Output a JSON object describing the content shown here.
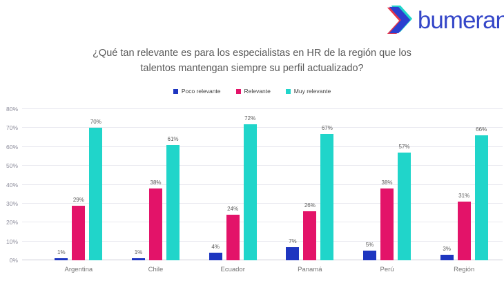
{
  "logo": {
    "text": "bumeran",
    "text_color": "#3446c8",
    "icon_colors": {
      "front": "#2b3fd0",
      "back_top": "#20d5ca",
      "back_left": "#e5344a"
    }
  },
  "title": {
    "text": "¿Qué tan relevante es para los especialistas en HR de la región que los talentos mantengan siempre su perfil actualizado?"
  },
  "chart_data": {
    "type": "bar",
    "categories": [
      "Argentina",
      "Chile",
      "Ecuador",
      "Panamá",
      "Perú",
      "Región"
    ],
    "series": [
      {
        "name": "Poco relevante",
        "color": "#1e36c0",
        "values": [
          1,
          1,
          4,
          7,
          5,
          3
        ]
      },
      {
        "name": "Relevante",
        "color": "#e31369",
        "values": [
          29,
          38,
          24,
          26,
          38,
          31
        ]
      },
      {
        "name": "Muy relevante",
        "color": "#20d5ca",
        "values": [
          70,
          61,
          72,
          67,
          57,
          66
        ]
      }
    ],
    "value_suffix": "%",
    "xlabel": "",
    "ylabel": "",
    "ylim": [
      0,
      80
    ],
    "yticks": [
      "0%",
      "10%",
      "20%",
      "30%",
      "40%",
      "50%",
      "60%",
      "70%",
      "80%"
    ],
    "grid": true,
    "legend_position": "top",
    "data_labels": true
  }
}
